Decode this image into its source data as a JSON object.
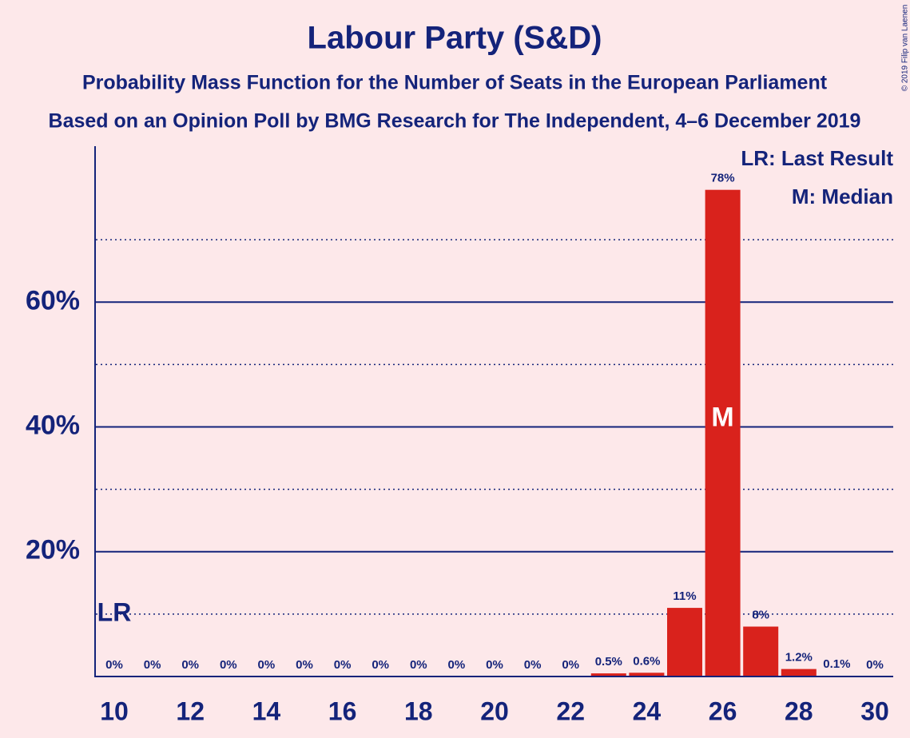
{
  "chart_data": {
    "type": "bar",
    "title": "Labour Party (S&D)",
    "subtitle": "Probability Mass Function for the Number of Seats in the European Parliament",
    "subtitle2": "Based on an Opinion Poll by BMG Research for The Independent, 4–6 December 2019",
    "copyright": "© 2019 Filip van Laenen",
    "legend": [
      "LR: Last Result",
      "M: Median"
    ],
    "categories": [
      10,
      null,
      12,
      null,
      14,
      null,
      16,
      null,
      18,
      null,
      20,
      null,
      22,
      null,
      24,
      null,
      26,
      null,
      28,
      null,
      30
    ],
    "values": [
      0,
      0,
      0,
      0,
      0,
      0,
      0,
      0,
      0,
      0,
      0,
      0,
      0,
      0.5,
      0.6,
      11,
      78,
      8,
      1.2,
      0.1,
      0
    ],
    "value_labels": [
      "0%",
      "0%",
      "0%",
      "0%",
      "0%",
      "0%",
      "0%",
      "0%",
      "0%",
      "0%",
      "0%",
      "0%",
      "0%",
      "0.5%",
      "0.6%",
      "11%",
      "78%",
      "8%",
      "1.2%",
      "0.1%",
      "0%"
    ],
    "color": "#d9221c",
    "ylim": [
      0,
      85
    ],
    "yticks": [
      {
        "value": 20,
        "label": "20%"
      },
      {
        "value": 40,
        "label": "40%"
      },
      {
        "value": 60,
        "label": "60%"
      }
    ],
    "minor_yticks": [
      10,
      30,
      50,
      70
    ],
    "grid": true,
    "markers": {
      "last_result": {
        "index": 0,
        "label": "LR",
        "y": 10
      },
      "median": {
        "index": 16,
        "label": "M",
        "y": 40
      }
    }
  }
}
